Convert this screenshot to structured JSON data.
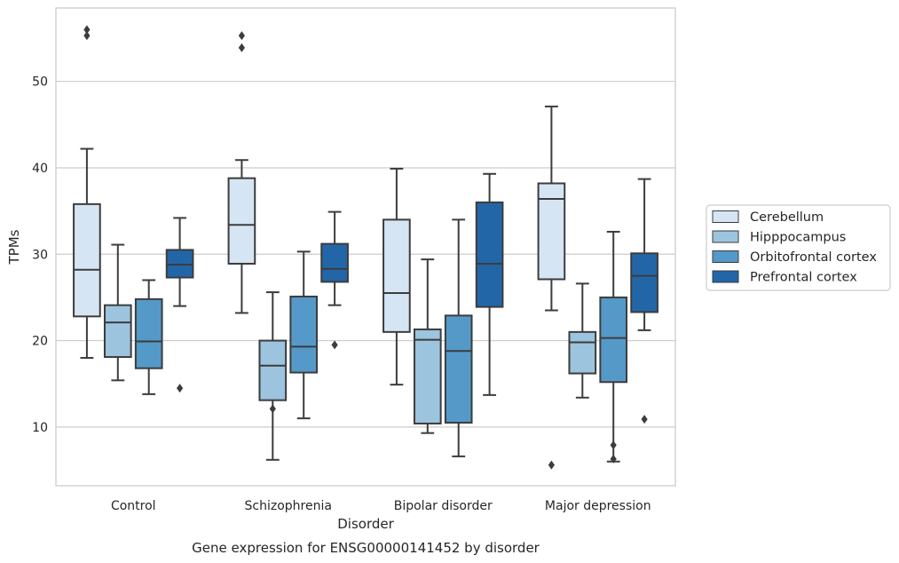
{
  "chart_data": {
    "type": "box",
    "title": "Gene expression for ENSG00000141452 by disorder",
    "xlabel": "Disorder",
    "ylabel": "TPMs",
    "ylim": [
      3.2,
      58.5
    ],
    "yticks": [
      10,
      20,
      30,
      40,
      50
    ],
    "grid": "horizontal",
    "legend_position": "right",
    "categories": [
      "Control",
      "Schizophrenia",
      "Bipolar disorder",
      "Major depression"
    ],
    "series": [
      {
        "name": "Cerebellum",
        "color": "#d6e5f3",
        "boxes": [
          {
            "whisker_low": 18.0,
            "q1": 22.8,
            "median": 28.2,
            "q3": 35.8,
            "whisker_high": 42.2,
            "outliers": [
              55.3,
              56.0
            ]
          },
          {
            "whisker_low": 23.2,
            "q1": 28.9,
            "median": 33.4,
            "q3": 38.8,
            "whisker_high": 40.9,
            "outliers": [
              53.9,
              55.3
            ]
          },
          {
            "whisker_low": 14.9,
            "q1": 21.0,
            "median": 25.5,
            "q3": 34.0,
            "whisker_high": 39.9,
            "outliers": []
          },
          {
            "whisker_low": 23.5,
            "q1": 27.1,
            "median": 36.4,
            "q3": 38.2,
            "whisker_high": 47.1,
            "outliers": [
              5.6
            ]
          }
        ]
      },
      {
        "name": "Hipppocampus",
        "color": "#9cc4de",
        "boxes": [
          {
            "whisker_low": 15.4,
            "q1": 18.1,
            "median": 22.1,
            "q3": 24.1,
            "whisker_high": 31.1,
            "outliers": []
          },
          {
            "whisker_low": 6.2,
            "q1": 13.1,
            "median": 17.1,
            "q3": 20.0,
            "whisker_high": 25.6,
            "outliers": [
              12.1
            ]
          },
          {
            "whisker_low": 9.3,
            "q1": 10.4,
            "median": 20.1,
            "q3": 21.3,
            "whisker_high": 29.4,
            "outliers": []
          },
          {
            "whisker_low": 13.4,
            "q1": 16.2,
            "median": 19.8,
            "q3": 21.0,
            "whisker_high": 26.6,
            "outliers": []
          }
        ]
      },
      {
        "name": "Orbitofrontal cortex",
        "color": "#5599c8",
        "boxes": [
          {
            "whisker_low": 13.8,
            "q1": 16.8,
            "median": 19.9,
            "q3": 24.8,
            "whisker_high": 27.0,
            "outliers": []
          },
          {
            "whisker_low": 11.0,
            "q1": 16.3,
            "median": 19.3,
            "q3": 25.1,
            "whisker_high": 30.3,
            "outliers": []
          },
          {
            "whisker_low": 6.6,
            "q1": 10.5,
            "median": 18.8,
            "q3": 22.9,
            "whisker_high": 34.0,
            "outliers": []
          },
          {
            "whisker_low": 6.0,
            "q1": 15.2,
            "median": 20.3,
            "q3": 25.0,
            "whisker_high": 32.6,
            "outliers": [
              6.3,
              7.9
            ]
          }
        ]
      },
      {
        "name": "Prefrontal cortex",
        "color": "#2266a8",
        "boxes": [
          {
            "whisker_low": 24.0,
            "q1": 27.3,
            "median": 28.8,
            "q3": 30.5,
            "whisker_high": 34.2,
            "outliers": [
              14.5
            ]
          },
          {
            "whisker_low": 24.1,
            "q1": 26.8,
            "median": 28.3,
            "q3": 31.2,
            "whisker_high": 34.9,
            "outliers": [
              19.5
            ]
          },
          {
            "whisker_low": 13.7,
            "q1": 23.9,
            "median": 28.9,
            "q3": 36.0,
            "whisker_high": 39.3,
            "outliers": []
          },
          {
            "whisker_low": 21.2,
            "q1": 23.3,
            "median": 27.5,
            "q3": 30.1,
            "whisker_high": 38.7,
            "outliers": [
              10.9
            ]
          }
        ]
      }
    ]
  }
}
